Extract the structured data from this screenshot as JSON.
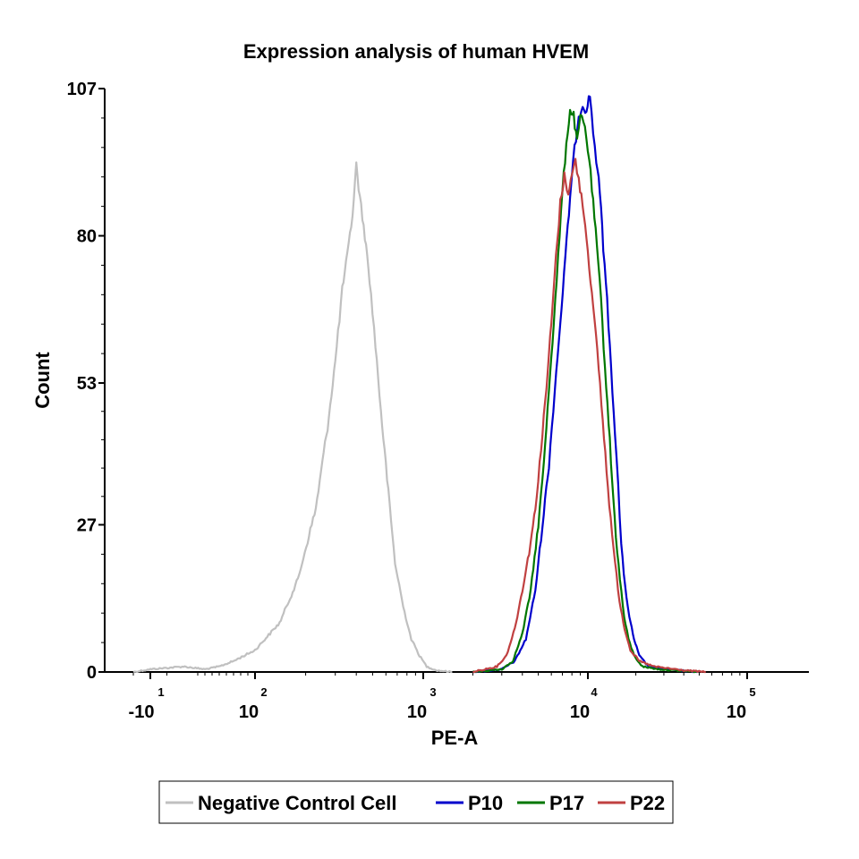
{
  "chart_data": {
    "type": "line",
    "title": "Expression analysis of human HVEM",
    "xlabel": "PE-A",
    "ylabel": "Count",
    "ylim": [
      0,
      107
    ],
    "y_ticks": [
      {
        "value": 0,
        "label": "0"
      },
      {
        "value": 27,
        "label": "27"
      },
      {
        "value": 53,
        "label": "53"
      },
      {
        "value": 80,
        "label": "80"
      },
      {
        "value": 107,
        "label": "107"
      }
    ],
    "x_ticks": [
      {
        "value": -10,
        "base": "-10",
        "exp": "1"
      },
      {
        "value": 100,
        "base": "10",
        "exp": "2"
      },
      {
        "value": 1000,
        "base": "10",
        "exp": "3"
      },
      {
        "value": 10000,
        "base": "10",
        "exp": "4"
      },
      {
        "value": 100000,
        "base": "10",
        "exp": "5"
      }
    ],
    "grid": false,
    "legend_position": "bottom",
    "series": [
      {
        "name": "Negative Control Cell",
        "color": "#c0c0c0",
        "points": [
          [
            -15,
            0
          ],
          [
            -10,
            0.5
          ],
          [
            0,
            1
          ],
          [
            30,
            0.5
          ],
          [
            50,
            1
          ],
          [
            70,
            2
          ],
          [
            100,
            4
          ],
          [
            140,
            9
          ],
          [
            180,
            17
          ],
          [
            230,
            30
          ],
          [
            270,
            45
          ],
          [
            300,
            57
          ],
          [
            330,
            70
          ],
          [
            360,
            78
          ],
          [
            380,
            84
          ],
          [
            400,
            93
          ],
          [
            420,
            87
          ],
          [
            450,
            80
          ],
          [
            480,
            72
          ],
          [
            520,
            60
          ],
          [
            560,
            48
          ],
          [
            620,
            33
          ],
          [
            680,
            20
          ],
          [
            760,
            12
          ],
          [
            850,
            6
          ],
          [
            950,
            3
          ],
          [
            1050,
            1
          ],
          [
            1200,
            0.3
          ],
          [
            1500,
            0
          ]
        ]
      },
      {
        "name": "P10",
        "color": "#0000cc",
        "points": [
          [
            2000,
            0
          ],
          [
            3000,
            0.5
          ],
          [
            3600,
            2
          ],
          [
            4200,
            6
          ],
          [
            4800,
            15
          ],
          [
            5300,
            27
          ],
          [
            5800,
            38
          ],
          [
            6300,
            52
          ],
          [
            6800,
            64
          ],
          [
            7300,
            76
          ],
          [
            7800,
            87
          ],
          [
            8300,
            96
          ],
          [
            8800,
            102
          ],
          [
            9300,
            104
          ],
          [
            9800,
            103
          ],
          [
            10300,
            106
          ],
          [
            10800,
            99
          ],
          [
            11300,
            94
          ],
          [
            11900,
            88
          ],
          [
            12500,
            78
          ],
          [
            13200,
            68
          ],
          [
            14000,
            56
          ],
          [
            14800,
            44
          ],
          [
            15500,
            34
          ],
          [
            16200,
            23
          ],
          [
            17100,
            16
          ],
          [
            18200,
            10
          ],
          [
            19500,
            6
          ],
          [
            21000,
            3
          ],
          [
            24000,
            1
          ],
          [
            30000,
            0.5
          ],
          [
            50000,
            0
          ]
        ]
      },
      {
        "name": "P17",
        "color": "#007700",
        "points": [
          [
            2000,
            0
          ],
          [
            3000,
            0.5
          ],
          [
            3500,
            2
          ],
          [
            4000,
            7
          ],
          [
            4500,
            15
          ],
          [
            5000,
            27
          ],
          [
            5400,
            38
          ],
          [
            5800,
            52
          ],
          [
            6200,
            64
          ],
          [
            6600,
            76
          ],
          [
            7000,
            88
          ],
          [
            7400,
            97
          ],
          [
            7800,
            103
          ],
          [
            8200,
            102
          ],
          [
            8600,
            97
          ],
          [
            9000,
            102
          ],
          [
            9600,
            100
          ],
          [
            10200,
            94
          ],
          [
            10800,
            86
          ],
          [
            11400,
            78
          ],
          [
            12100,
            68
          ],
          [
            12800,
            56
          ],
          [
            13500,
            46
          ],
          [
            14200,
            35
          ],
          [
            15000,
            25
          ],
          [
            15900,
            17
          ],
          [
            16900,
            10
          ],
          [
            18000,
            6
          ],
          [
            19500,
            3
          ],
          [
            22000,
            1
          ],
          [
            28000,
            0.5
          ],
          [
            50000,
            0
          ]
        ]
      },
      {
        "name": "P22",
        "color": "#c04040",
        "points": [
          [
            2000,
            0
          ],
          [
            2800,
            1
          ],
          [
            3200,
            3
          ],
          [
            3600,
            8
          ],
          [
            4000,
            15
          ],
          [
            4400,
            22
          ],
          [
            4800,
            30
          ],
          [
            5200,
            41
          ],
          [
            5600,
            52
          ],
          [
            6000,
            64
          ],
          [
            6400,
            76
          ],
          [
            6800,
            86
          ],
          [
            7200,
            91
          ],
          [
            7600,
            88
          ],
          [
            8000,
            91
          ],
          [
            8400,
            94
          ],
          [
            8800,
            90
          ],
          [
            9300,
            86
          ],
          [
            9800,
            80
          ],
          [
            10400,
            72
          ],
          [
            11000,
            64
          ],
          [
            11700,
            56
          ],
          [
            12400,
            46
          ],
          [
            13100,
            37
          ],
          [
            13900,
            28
          ],
          [
            14800,
            20
          ],
          [
            15800,
            13
          ],
          [
            17000,
            8
          ],
          [
            18500,
            4
          ],
          [
            21000,
            2
          ],
          [
            26000,
            1
          ],
          [
            40000,
            0.3
          ],
          [
            55000,
            0
          ]
        ]
      }
    ]
  }
}
